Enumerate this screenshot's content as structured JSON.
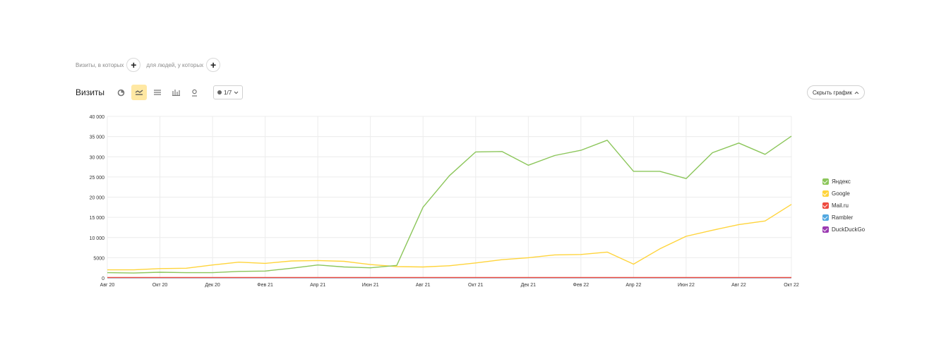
{
  "segment": {
    "visits_label": "Визиты, в которых",
    "people_label": "для людей, у которых"
  },
  "toolbar": {
    "title": "Визиты",
    "series_count": "1/7",
    "hide_chart_label": "Скрыть график"
  },
  "colors": {
    "accent": "#ffe8a3",
    "grid": "#ececec"
  },
  "chart_data": {
    "type": "line",
    "x": [
      "Авг 20",
      "Сен 20",
      "Окт 20",
      "Ноя 20",
      "Дек 20",
      "Янв 21",
      "Фев 21",
      "Мар 21",
      "Апр 21",
      "Май 21",
      "Июн 21",
      "Июл 21",
      "Авг 21",
      "Сен 21",
      "Окт 21",
      "Ноя 21",
      "Дек 21",
      "Янв 22",
      "Фев 22",
      "Мар 22",
      "Апр 22",
      "Май 22",
      "Июн 22",
      "Июл 22",
      "Авг 22",
      "Сен 22",
      "Окт 22"
    ],
    "x_tick_labels": [
      "Авг 20",
      "Окт 20",
      "Дек 20",
      "Фев 21",
      "Апр 21",
      "Июн 21",
      "Авг 21",
      "Окт 21",
      "Дек 21",
      "Фев 22",
      "Апр 22",
      "Июн 22",
      "Авг 22",
      "Окт 22"
    ],
    "y_ticks": [
      0,
      5000,
      10000,
      15000,
      20000,
      25000,
      30000,
      35000,
      40000
    ],
    "y_tick_labels": [
      "0",
      "5000",
      "10 000",
      "15 000",
      "20 000",
      "25 000",
      "30 000",
      "35 000",
      "40 000"
    ],
    "ylim": [
      0,
      40000
    ],
    "grid": true,
    "legend_position": "right",
    "series": [
      {
        "name": "Яндекс",
        "color": "#8cc65b",
        "values": [
          1300,
          1200,
          1400,
          1300,
          1300,
          1600,
          1700,
          2400,
          3200,
          2700,
          2500,
          3100,
          17500,
          25300,
          31200,
          31300,
          27900,
          30300,
          31600,
          34100,
          26400,
          26400,
          24600,
          31000,
          33400,
          30600,
          35100
        ]
      },
      {
        "name": "Google",
        "color": "#ffd43b",
        "values": [
          2000,
          2000,
          2300,
          2400,
          3200,
          3900,
          3600,
          4200,
          4300,
          4100,
          3300,
          2800,
          2700,
          3000,
          3700,
          4500,
          5000,
          5700,
          5800,
          6400,
          3400,
          7200,
          10300,
          11800,
          13200,
          14100,
          18200
        ]
      },
      {
        "name": "Mail.ru",
        "color": "#ee4b3f",
        "values": [
          80,
          80,
          80,
          80,
          80,
          80,
          80,
          80,
          80,
          80,
          80,
          80,
          80,
          80,
          80,
          80,
          80,
          80,
          80,
          80,
          80,
          80,
          80,
          80,
          80,
          80,
          80
        ]
      },
      {
        "name": "Rambler",
        "color": "#52a8e0",
        "values": [
          20,
          20,
          20,
          20,
          20,
          20,
          20,
          20,
          20,
          20,
          20,
          20,
          20,
          20,
          20,
          20,
          20,
          20,
          20,
          20,
          20,
          20,
          20,
          20,
          20,
          20,
          20
        ]
      },
      {
        "name": "DuckDuckGo",
        "color": "#9b3ab1",
        "values": [
          40,
          40,
          40,
          40,
          40,
          40,
          40,
          40,
          40,
          40,
          40,
          40,
          40,
          40,
          40,
          40,
          40,
          40,
          40,
          40,
          40,
          40,
          40,
          40,
          40,
          40,
          40
        ]
      }
    ]
  }
}
